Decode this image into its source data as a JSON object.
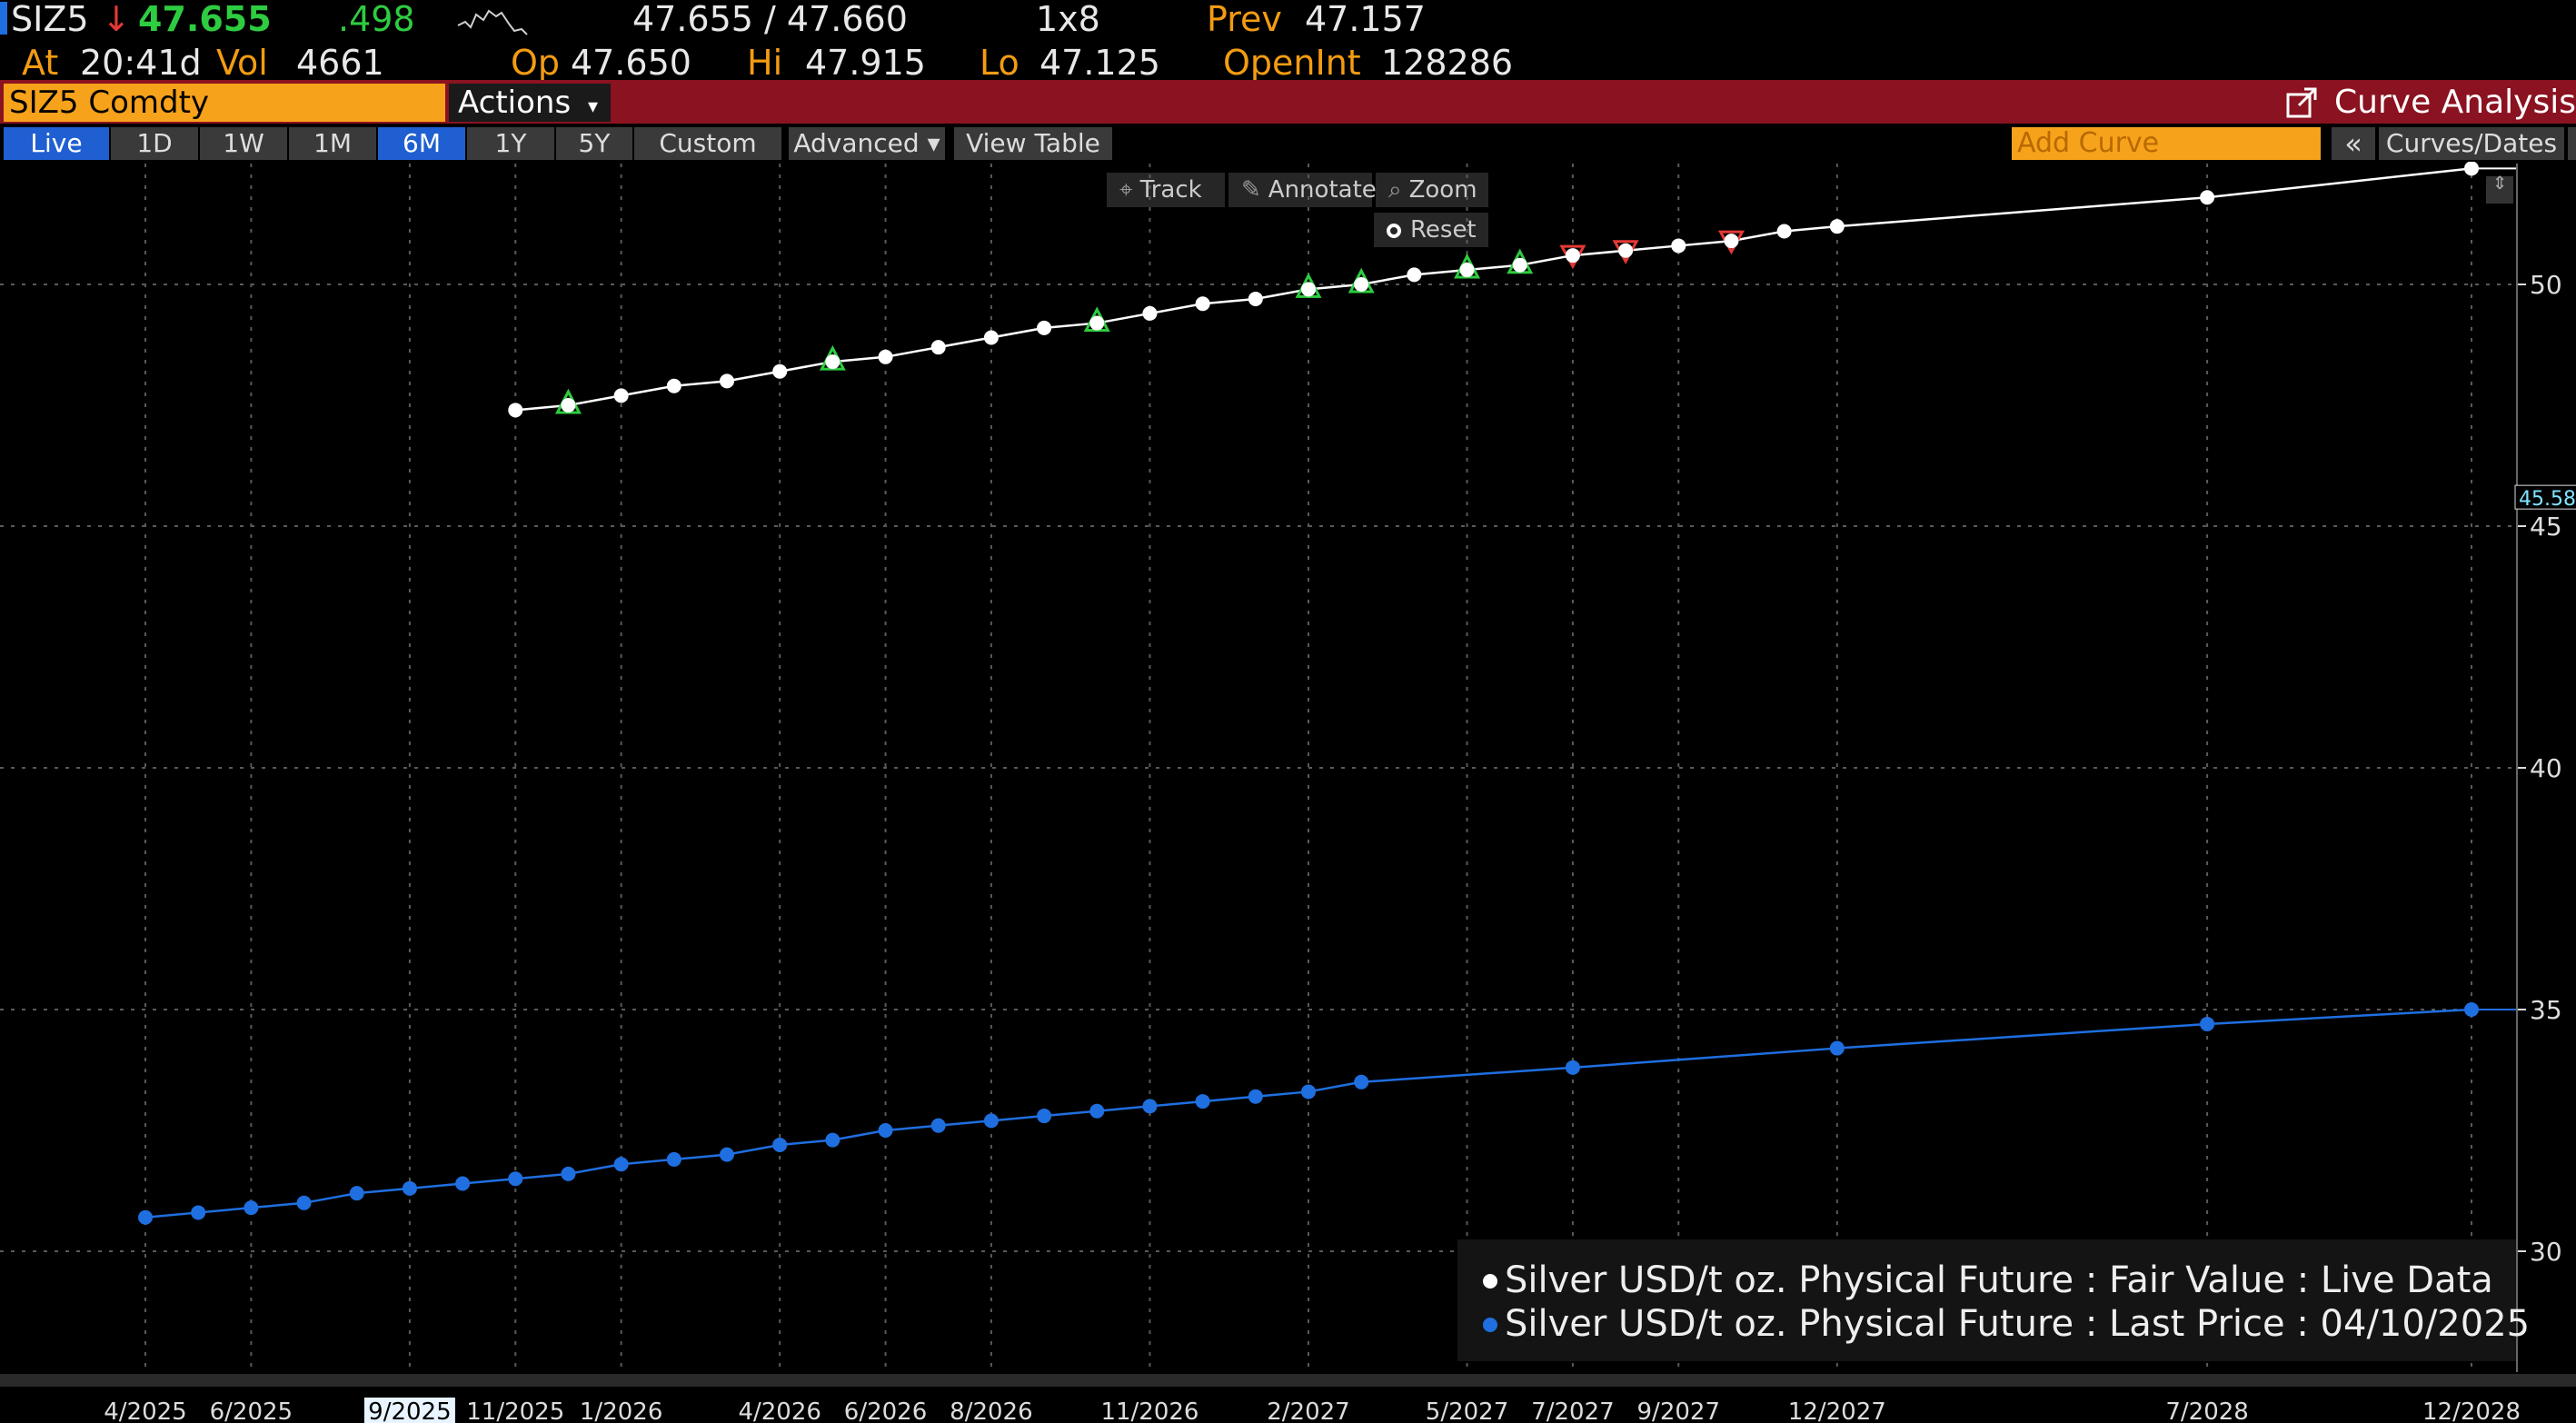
{
  "quote": {
    "ticker": "SIZ5",
    "direction_arrow": "↓",
    "last": "47.655",
    "change": ".498",
    "bid_ask": "47.655 / 47.660",
    "size": "1x8",
    "prev_label": "Prev",
    "prev": "47.157",
    "at_label": "At",
    "time": "20:41d",
    "vol_label": "Vol",
    "vol": "4661",
    "open_label": "Op",
    "open": "47.650",
    "high_label": "Hi",
    "high": "47.915",
    "low_label": "Lo",
    "low": "47.125",
    "oi_label": "OpenInt",
    "oi": "128286"
  },
  "command_bar": {
    "security": "SIZ5 Comdty",
    "actions": "Actions",
    "actions_caret": "▾",
    "title": "Curve Analysis"
  },
  "tabs": [
    {
      "label": "Live",
      "active": true
    },
    {
      "label": "1D",
      "active": false
    },
    {
      "label": "1W",
      "active": false
    },
    {
      "label": "1M",
      "active": false
    },
    {
      "label": "6M",
      "active": true
    },
    {
      "label": "1Y",
      "active": false
    },
    {
      "label": "5Y",
      "active": false
    },
    {
      "label": "Custom",
      "active": false
    },
    {
      "label": "Advanced ▾",
      "active": false
    },
    {
      "label": "View Table",
      "active": false
    }
  ],
  "right_toolbar": {
    "add_curve_placeholder": "Add Curve",
    "collapse": "«",
    "curves_dates": "Curves/Dates"
  },
  "chart_tools": {
    "track": "Track",
    "annotate": "Annotate",
    "zoom": "Zoom",
    "reset": "Reset"
  },
  "colors": {
    "fair_value": "#ffffff",
    "last_price": "#1f6fe0",
    "up_marker": "#2ecc40",
    "down_marker": "#e53935",
    "grid": "#5a5a5a",
    "command_bar": "#8b1220",
    "orange": "#f7a21b"
  },
  "chart_data": {
    "type": "line",
    "ylim": [
      27.5,
      52.5
    ],
    "y_ticks": [
      30,
      35,
      40,
      45,
      50
    ],
    "x_ticks": [
      "4/2025",
      "6/2025",
      "9/2025",
      "11/2025",
      "1/2026",
      "4/2026",
      "6/2026",
      "8/2026",
      "11/2026",
      "2/2027",
      "5/2027",
      "7/2027",
      "9/2027",
      "12/2027",
      "7/2028",
      "12/2028"
    ],
    "highlighted_x_tick": "9/2025",
    "current_value_label": "45.58",
    "legend": [
      "Silver USD/t oz. Physical Future : Fair Value : Live Data",
      "Silver USD/t oz. Physical Future : Last Price : 04/10/2025"
    ],
    "series": [
      {
        "name": "Silver USD/t oz. Physical Future : Fair Value : Live Data",
        "x": [
          "2025-11",
          "2025-12",
          "2026-01",
          "2026-02",
          "2026-03",
          "2026-04",
          "2026-05",
          "2026-06",
          "2026-07",
          "2026-08",
          "2026-09",
          "2026-10",
          "2026-11",
          "2026-12",
          "2027-01",
          "2027-02",
          "2027-03",
          "2027-04",
          "2027-05",
          "2027-06",
          "2027-07",
          "2027-08",
          "2027-09",
          "2027-10",
          "2027-11",
          "2027-12",
          "2028-07",
          "2028-12"
        ],
        "values": [
          47.4,
          47.5,
          47.7,
          47.9,
          48.0,
          48.2,
          48.4,
          48.5,
          48.7,
          48.9,
          49.1,
          49.2,
          49.4,
          49.6,
          49.7,
          49.9,
          50.0,
          50.2,
          50.3,
          50.4,
          50.6,
          50.7,
          50.8,
          50.9,
          51.1,
          51.2,
          51.8,
          52.4
        ],
        "markers": [
          "none",
          "up",
          "none",
          "none",
          "none",
          "none",
          "up",
          "none",
          "none",
          "none",
          "none",
          "up",
          "none",
          "none",
          "none",
          "up",
          "up",
          "none",
          "up",
          "up",
          "down",
          "down",
          "none",
          "down",
          "none",
          "none",
          "none",
          "none"
        ]
      },
      {
        "name": "Silver USD/t oz. Physical Future : Last Price : 04/10/2025",
        "x": [
          "2025-04",
          "2025-05",
          "2025-06",
          "2025-07",
          "2025-08",
          "2025-09",
          "2025-10",
          "2025-11",
          "2025-12",
          "2026-01",
          "2026-02",
          "2026-03",
          "2026-04",
          "2026-05",
          "2026-06",
          "2026-07",
          "2026-08",
          "2026-09",
          "2026-10",
          "2026-11",
          "2026-12",
          "2027-01",
          "2027-02",
          "2027-03",
          "2027-07",
          "2027-12",
          "2028-07",
          "2028-12"
        ],
        "values": [
          30.7,
          30.8,
          30.9,
          31.0,
          31.2,
          31.3,
          31.4,
          31.5,
          31.6,
          31.8,
          31.9,
          32.0,
          32.2,
          32.3,
          32.5,
          32.6,
          32.7,
          32.8,
          32.9,
          33.0,
          33.1,
          33.2,
          33.3,
          33.5,
          33.8,
          34.2,
          34.7,
          35.0
        ]
      }
    ]
  }
}
